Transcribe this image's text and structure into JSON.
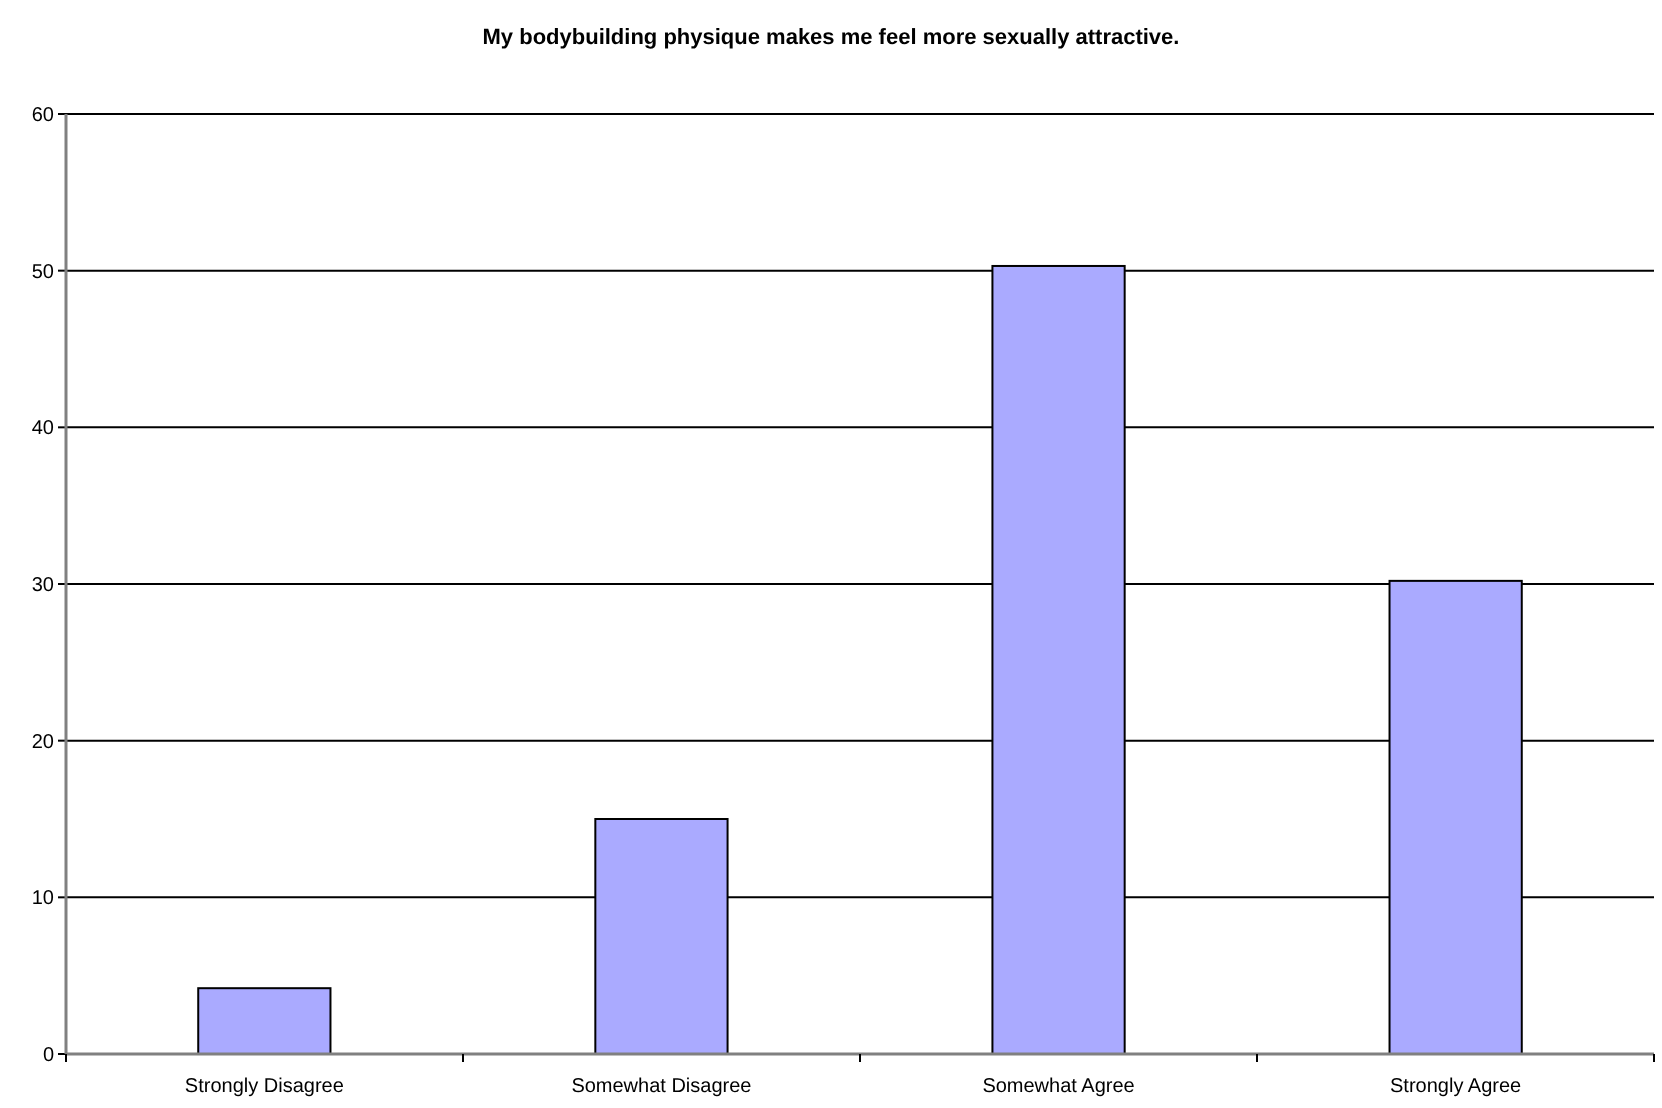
{
  "chart_data": {
    "type": "bar",
    "title": "My bodybuilding physique makes me feel more sexually attractive.",
    "categories": [
      "Strongly Disagree",
      "Somewhat Disagree",
      "Somewhat Agree",
      "Strongly Agree"
    ],
    "values": [
      4.2,
      15,
      50.3,
      30.2
    ],
    "color": "#aaaaff",
    "ylim": [
      0,
      60
    ],
    "yticks": [
      0,
      10,
      20,
      30,
      40,
      50,
      60
    ],
    "grid": "y"
  }
}
